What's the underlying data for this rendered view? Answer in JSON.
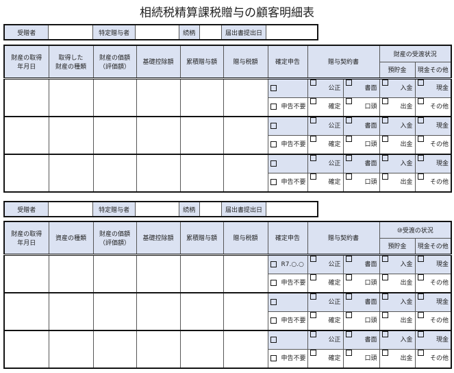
{
  "title": "相続税精算課税贈与の顧客明細表",
  "sections": [
    {
      "info": [
        "受贈者",
        "特定贈与者",
        "続柄",
        "届出書提出日"
      ],
      "headers": [
        "財産の取得\n年月日",
        "取得した\n財産の種類",
        "財産の価額\n（評価額）",
        "基礎控除額",
        "累積贈与額",
        "贈与税額",
        "確定申告",
        "贈与契約書",
        "財産の受渡状況",
        "預貯金",
        "現金その他"
      ],
      "rows": [
        {
          "shinkoku_top": "",
          "shinkoku_bottom": "申告不要",
          "keiyaku_top": [
            "公正",
            "書面"
          ],
          "keiyaku_bottom": [
            "確定",
            "口頭"
          ],
          "ukewatashi_top": [
            "入金",
            "現金"
          ],
          "ukewatashi_bottom": [
            "出金",
            "その他"
          ]
        },
        {
          "shinkoku_top": "",
          "shinkoku_bottom": "申告不要",
          "keiyaku_top": [
            "公正",
            "書面"
          ],
          "keiyaku_bottom": [
            "確定",
            "口頭"
          ],
          "ukewatashi_top": [
            "入金",
            "現金"
          ],
          "ukewatashi_bottom": [
            "出金",
            "その他"
          ]
        },
        {
          "shinkoku_top": "",
          "shinkoku_bottom": "申告不要",
          "keiyaku_top": [
            "公正",
            "書面"
          ],
          "keiyaku_bottom": [
            "確定",
            "口頭"
          ],
          "ukewatashi_top": [
            "入金",
            "現金"
          ],
          "ukewatashi_bottom": [
            "出金",
            "その他"
          ]
        }
      ]
    },
    {
      "info": [
        "受贈者",
        "特定贈与者",
        "続柄",
        "届出書提出日"
      ],
      "headers": [
        "財産の取得\n年月日",
        "資産の種類",
        "財産の価額\n（評価額）",
        "基礎控除額",
        "累積贈与額",
        "贈与税額",
        "確定申告",
        "贈与契約書",
        "⑩受渡の状況",
        "預貯金",
        "現金その他"
      ],
      "rows": [
        {
          "shinkoku_top": "R7.○.○",
          "shinkoku_bottom": "申告不要",
          "keiyaku_top": [
            "公正",
            "書面"
          ],
          "keiyaku_bottom": [
            "確定",
            "口頭"
          ],
          "ukewatashi_top": [
            "入金",
            "現金"
          ],
          "ukewatashi_bottom": [
            "出金",
            "その他"
          ]
        },
        {
          "shinkoku_top": "",
          "shinkoku_bottom": "申告不要",
          "keiyaku_top": [
            "公正",
            "書面"
          ],
          "keiyaku_bottom": [
            "確定",
            "口頭"
          ],
          "ukewatashi_top": [
            "入金",
            "現金"
          ],
          "ukewatashi_bottom": [
            "出金",
            "その他"
          ]
        },
        {
          "shinkoku_top": "",
          "shinkoku_bottom": "申告不要",
          "keiyaku_top": [
            "公正",
            "書面"
          ],
          "keiyaku_bottom": [
            "確定",
            "口頭"
          ],
          "ukewatashi_top": [
            "入金",
            "現金"
          ],
          "ukewatashi_bottom": [
            "出金",
            "その他"
          ]
        }
      ]
    }
  ],
  "colors": {
    "header_fill": "#dbe2f2",
    "border": "#111111"
  }
}
